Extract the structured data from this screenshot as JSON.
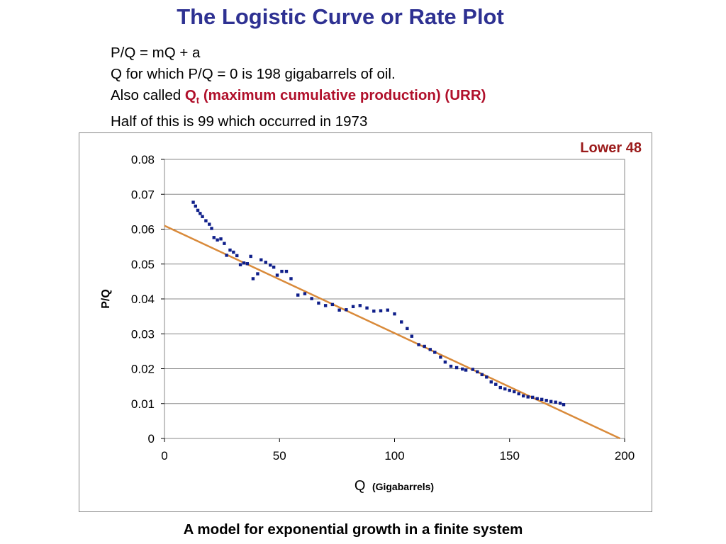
{
  "page": {
    "title": "The Logistic Curve or Rate Plot",
    "notes": {
      "line1": "P/Q = mQ + a",
      "line2": "Q for which P/Q = 0 is 198 gigabarrels of oil.",
      "line3_prefix": "Also called ",
      "line3_q": "Q",
      "line3_sub": "t",
      "line3_rest": " (maximum cumulative production) (URR)",
      "line4": "Half of this is 99 which occurred in 1973"
    },
    "caption": "A model for exponential growth in a finite system",
    "colors": {
      "title": "#2e3192",
      "accent": "#b0102b",
      "points": "#0f1f8a",
      "fit_line": "#d98a3a",
      "grid": "#888888"
    }
  },
  "chart_data": {
    "type": "scatter",
    "region_label": "Lower 48",
    "xlabel_main": "Q",
    "xlabel_unit": "(Gigabarrels)",
    "ylabel": "P/Q",
    "xlim": [
      0,
      200
    ],
    "ylim": [
      0,
      0.08
    ],
    "x_ticks": [
      "0",
      "50",
      "100",
      "150",
      "200"
    ],
    "y_ticks": [
      "0",
      "0.01",
      "0.02",
      "0.03",
      "0.04",
      "0.05",
      "0.06",
      "0.07",
      "0.08"
    ],
    "grid": "horizontal",
    "series": [
      {
        "kind": "points",
        "points": [
          [
            12.5,
            0.0677
          ],
          [
            13.5,
            0.0666
          ],
          [
            14.5,
            0.0654
          ],
          [
            15.5,
            0.0645
          ],
          [
            16.5,
            0.0636
          ],
          [
            18,
            0.0624
          ],
          [
            19.5,
            0.0614
          ],
          [
            20.5,
            0.0602
          ],
          [
            21.5,
            0.0576
          ],
          [
            23,
            0.0569
          ],
          [
            24.5,
            0.0572
          ],
          [
            26,
            0.0559
          ],
          [
            27,
            0.0525
          ],
          [
            28.5,
            0.054
          ],
          [
            30,
            0.0534
          ],
          [
            31.5,
            0.0524
          ],
          [
            33,
            0.0498
          ],
          [
            34.5,
            0.0503
          ],
          [
            36,
            0.0501
          ],
          [
            37.5,
            0.0522
          ],
          [
            38.5,
            0.0458
          ],
          [
            40.5,
            0.0472
          ],
          [
            42,
            0.0512
          ],
          [
            44,
            0.0505
          ],
          [
            46,
            0.0497
          ],
          [
            47.5,
            0.0491
          ],
          [
            49,
            0.0468
          ],
          [
            51,
            0.0479
          ],
          [
            53,
            0.0479
          ],
          [
            55,
            0.0458
          ],
          [
            58,
            0.0411
          ],
          [
            61,
            0.0415
          ],
          [
            64,
            0.0401
          ],
          [
            67,
            0.0388
          ],
          [
            70,
            0.0381
          ],
          [
            73,
            0.0384
          ],
          [
            76,
            0.0368
          ],
          [
            79,
            0.0369
          ],
          [
            82,
            0.0378
          ],
          [
            85,
            0.0381
          ],
          [
            88,
            0.0374
          ],
          [
            91,
            0.0365
          ],
          [
            94,
            0.0366
          ],
          [
            97,
            0.0368
          ],
          [
            100,
            0.0357
          ],
          [
            103,
            0.0334
          ],
          [
            105.5,
            0.0315
          ],
          [
            107.5,
            0.0293
          ],
          [
            110.5,
            0.0269
          ],
          [
            113,
            0.0264
          ],
          [
            115.5,
            0.0255
          ],
          [
            117.5,
            0.0247
          ],
          [
            120,
            0.0233
          ],
          [
            122,
            0.0219
          ],
          [
            124.5,
            0.0207
          ],
          [
            127,
            0.0203
          ],
          [
            129.5,
            0.0199
          ],
          [
            131,
            0.0196
          ],
          [
            134,
            0.0198
          ],
          [
            136,
            0.0191
          ],
          [
            138,
            0.0183
          ],
          [
            140,
            0.0176
          ],
          [
            142,
            0.0162
          ],
          [
            144,
            0.0155
          ],
          [
            146,
            0.0146
          ],
          [
            148,
            0.0142
          ],
          [
            150,
            0.0138
          ],
          [
            152,
            0.0134
          ],
          [
            154,
            0.0128
          ],
          [
            156,
            0.0122
          ],
          [
            158,
            0.0119
          ],
          [
            160,
            0.0118
          ],
          [
            162,
            0.0114
          ],
          [
            164,
            0.0112
          ],
          [
            166,
            0.0109
          ],
          [
            168,
            0.0106
          ],
          [
            170,
            0.0104
          ],
          [
            172,
            0.0101
          ],
          [
            173.5,
            0.0097
          ]
        ]
      },
      {
        "kind": "fit_line",
        "points": [
          [
            0,
            0.061
          ],
          [
            198,
            0
          ]
        ]
      }
    ]
  }
}
